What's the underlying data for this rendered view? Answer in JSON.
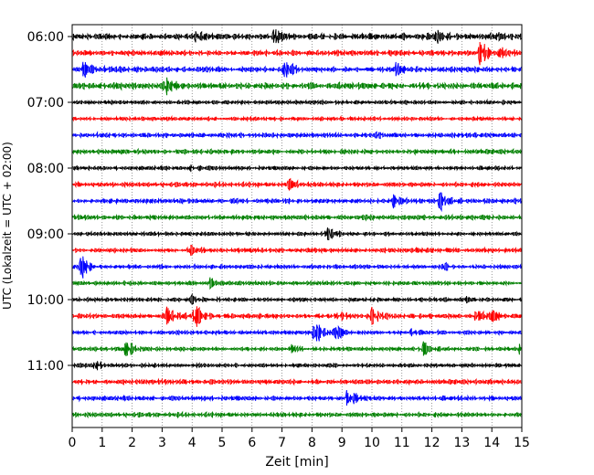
{
  "chart_data": {
    "type": "line",
    "title": "",
    "xlabel": "Zeit  [min]",
    "ylabel": "UTC (Lokalzeit = UTC + 02:00)",
    "xlim": [
      0,
      15
    ],
    "x_ticks": [
      0,
      1,
      2,
      3,
      4,
      5,
      6,
      7,
      8,
      9,
      10,
      11,
      12,
      13,
      14,
      15
    ],
    "x_tick_labels": [
      "0",
      "1",
      "2",
      "3",
      "4",
      "5",
      "6",
      "7",
      "8",
      "9",
      "10",
      "11",
      "12",
      "13",
      "14",
      "15"
    ],
    "y_tick_labels": [
      "06:00",
      "07:00",
      "08:00",
      "09:00",
      "10:00",
      "11:00"
    ],
    "trace_interval_min": 15,
    "start_time": "06:00",
    "grid": "vertical dotted",
    "trace_colors": [
      "#000000",
      "#ff0000",
      "#0000ff",
      "#008000"
    ],
    "traces": [
      {
        "time": "06:00",
        "color": "#000000",
        "amp": 4,
        "events": [
          {
            "t": 4.0,
            "a": 6
          },
          {
            "t": 6.7,
            "a": 9
          },
          {
            "t": 12.1,
            "a": 8
          },
          {
            "t": 14.2,
            "a": 5
          }
        ]
      },
      {
        "time": "06:15",
        "color": "#ff0000",
        "amp": 3.5,
        "events": [
          {
            "t": 13.6,
            "a": 18
          },
          {
            "t": 14.3,
            "a": 5
          }
        ]
      },
      {
        "time": "06:30",
        "color": "#0000ff",
        "amp": 3.5,
        "events": [
          {
            "t": 0.4,
            "a": 10
          },
          {
            "t": 7.1,
            "a": 12
          },
          {
            "t": 10.8,
            "a": 6
          }
        ]
      },
      {
        "time": "06:45",
        "color": "#008000",
        "amp": 4,
        "events": [
          {
            "t": 3.1,
            "a": 10
          }
        ]
      },
      {
        "time": "07:00",
        "color": "#000000",
        "amp": 2.5,
        "events": []
      },
      {
        "time": "07:15",
        "color": "#ff0000",
        "amp": 2.5,
        "events": []
      },
      {
        "time": "07:30",
        "color": "#0000ff",
        "amp": 3,
        "events": [
          {
            "t": 10.0,
            "a": 4
          }
        ]
      },
      {
        "time": "07:45",
        "color": "#008000",
        "amp": 3,
        "events": []
      },
      {
        "time": "08:00",
        "color": "#000000",
        "amp": 2.5,
        "events": [
          {
            "t": 4.0,
            "a": 4
          }
        ]
      },
      {
        "time": "08:15",
        "color": "#ff0000",
        "amp": 3,
        "events": [
          {
            "t": 7.2,
            "a": 10
          }
        ]
      },
      {
        "time": "08:30",
        "color": "#0000ff",
        "amp": 3,
        "events": [
          {
            "t": 10.7,
            "a": 7
          },
          {
            "t": 12.3,
            "a": 14
          }
        ]
      },
      {
        "time": "08:45",
        "color": "#008000",
        "amp": 3,
        "events": []
      },
      {
        "time": "09:00",
        "color": "#000000",
        "amp": 2.5,
        "events": [
          {
            "t": 8.5,
            "a": 7
          }
        ]
      },
      {
        "time": "09:15",
        "color": "#ff0000",
        "amp": 3,
        "events": [
          {
            "t": 3.9,
            "a": 5
          }
        ]
      },
      {
        "time": "09:30",
        "color": "#0000ff",
        "amp": 2.5,
        "events": [
          {
            "t": 0.3,
            "a": 16
          },
          {
            "t": 12.4,
            "a": 4
          }
        ]
      },
      {
        "time": "09:45",
        "color": "#008000",
        "amp": 2.5,
        "events": [
          {
            "t": 4.6,
            "a": 5
          }
        ]
      },
      {
        "time": "10:00",
        "color": "#000000",
        "amp": 2.5,
        "events": [
          {
            "t": 4.0,
            "a": 4
          },
          {
            "t": 13.0,
            "a": 4
          }
        ]
      },
      {
        "time": "10:15",
        "color": "#ff0000",
        "amp": 3,
        "events": [
          {
            "t": 3.2,
            "a": 16
          },
          {
            "t": 4.1,
            "a": 12
          },
          {
            "t": 8.8,
            "a": 7
          },
          {
            "t": 10.0,
            "a": 10
          },
          {
            "t": 13.5,
            "a": 7
          },
          {
            "t": 14.0,
            "a": 6
          }
        ]
      },
      {
        "time": "10:30",
        "color": "#0000ff",
        "amp": 2.5,
        "events": [
          {
            "t": 8.1,
            "a": 14
          },
          {
            "t": 8.8,
            "a": 7
          },
          {
            "t": 11.3,
            "a": 5
          }
        ]
      },
      {
        "time": "10:45",
        "color": "#008000",
        "amp": 2.5,
        "events": [
          {
            "t": 1.8,
            "a": 11
          },
          {
            "t": 7.3,
            "a": 4
          },
          {
            "t": 11.7,
            "a": 11
          },
          {
            "t": 14.9,
            "a": 5
          }
        ]
      },
      {
        "time": "11:00",
        "color": "#000000",
        "amp": 2.5,
        "events": [
          {
            "t": 0.8,
            "a": 8
          }
        ]
      },
      {
        "time": "11:15",
        "color": "#ff0000",
        "amp": 3,
        "events": []
      },
      {
        "time": "11:30",
        "color": "#0000ff",
        "amp": 3,
        "events": [
          {
            "t": 9.2,
            "a": 12
          }
        ]
      },
      {
        "time": "11:45",
        "color": "#008000",
        "amp": 3,
        "events": []
      }
    ]
  }
}
